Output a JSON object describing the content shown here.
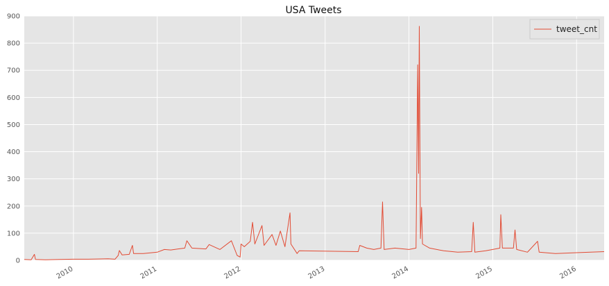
{
  "chart_data": {
    "type": "line",
    "title": "USA Tweets",
    "xlabel": "",
    "ylabel": "",
    "x_axis": "date",
    "xlim": [
      "2009-06-01",
      "2016-04-30"
    ],
    "ylim": [
      0,
      900
    ],
    "y_ticks": [
      0,
      100,
      200,
      300,
      400,
      500,
      600,
      700,
      800,
      900
    ],
    "x_ticks": [
      "2010",
      "2011",
      "2012",
      "2013",
      "2014",
      "2015",
      "2016"
    ],
    "x_tick_dates": [
      "2010-01-01",
      "2011-01-01",
      "2012-01-01",
      "2013-01-01",
      "2014-01-01",
      "2015-01-01",
      "2016-01-01"
    ],
    "grid": true,
    "legend_position": "top-right",
    "series": [
      {
        "name": "tweet_cnt",
        "color": "#e24a33",
        "points": [
          [
            "2009-06-01",
            3
          ],
          [
            "2009-07-01",
            2
          ],
          [
            "2009-07-15",
            22
          ],
          [
            "2009-07-20",
            3
          ],
          [
            "2009-09-01",
            2
          ],
          [
            "2009-11-01",
            3
          ],
          [
            "2010-01-01",
            4
          ],
          [
            "2010-03-01",
            4
          ],
          [
            "2010-05-01",
            5
          ],
          [
            "2010-06-01",
            6
          ],
          [
            "2010-07-01",
            4
          ],
          [
            "2010-07-15",
            18
          ],
          [
            "2010-07-20",
            36
          ],
          [
            "2010-08-01",
            20
          ],
          [
            "2010-09-01",
            22
          ],
          [
            "2010-09-15",
            55
          ],
          [
            "2010-09-20",
            25
          ],
          [
            "2010-11-01",
            25
          ],
          [
            "2011-01-01",
            30
          ],
          [
            "2011-02-01",
            40
          ],
          [
            "2011-03-01",
            38
          ],
          [
            "2011-05-01",
            45
          ],
          [
            "2011-05-10",
            72
          ],
          [
            "2011-06-01",
            45
          ],
          [
            "2011-08-01",
            42
          ],
          [
            "2011-08-15",
            58
          ],
          [
            "2011-10-01",
            40
          ],
          [
            "2011-11-20",
            72
          ],
          [
            "2011-12-15",
            18
          ],
          [
            "2011-12-28",
            12
          ],
          [
            "2012-01-01",
            60
          ],
          [
            "2012-01-15",
            50
          ],
          [
            "2012-02-10",
            70
          ],
          [
            "2012-02-20",
            140
          ],
          [
            "2012-03-01",
            60
          ],
          [
            "2012-04-01",
            128
          ],
          [
            "2012-04-10",
            55
          ],
          [
            "2012-05-15",
            95
          ],
          [
            "2012-06-01",
            55
          ],
          [
            "2012-06-20",
            108
          ],
          [
            "2012-07-10",
            50
          ],
          [
            "2012-08-01",
            175
          ],
          [
            "2012-08-05",
            60
          ],
          [
            "2012-09-01",
            25
          ],
          [
            "2012-09-10",
            35
          ],
          [
            "2013-05-25",
            32
          ],
          [
            "2013-06-01",
            55
          ],
          [
            "2013-07-01",
            45
          ],
          [
            "2013-08-01",
            40
          ],
          [
            "2013-09-01",
            45
          ],
          [
            "2013-09-08",
            215
          ],
          [
            "2013-09-15",
            40
          ],
          [
            "2013-11-01",
            45
          ],
          [
            "2014-01-01",
            40
          ],
          [
            "2014-02-01",
            45
          ],
          [
            "2014-02-08",
            720
          ],
          [
            "2014-02-12",
            320
          ],
          [
            "2014-02-15",
            862
          ],
          [
            "2014-02-20",
            80
          ],
          [
            "2014-02-25",
            195
          ],
          [
            "2014-03-01",
            60
          ],
          [
            "2014-04-01",
            45
          ],
          [
            "2014-06-01",
            35
          ],
          [
            "2014-08-01",
            30
          ],
          [
            "2014-10-01",
            32
          ],
          [
            "2014-10-08",
            140
          ],
          [
            "2014-10-15",
            30
          ],
          [
            "2014-12-01",
            35
          ],
          [
            "2015-01-01",
            40
          ],
          [
            "2015-02-01",
            45
          ],
          [
            "2015-02-05",
            168
          ],
          [
            "2015-02-12",
            45
          ],
          [
            "2015-04-01",
            45
          ],
          [
            "2015-04-08",
            112
          ],
          [
            "2015-04-15",
            40
          ],
          [
            "2015-06-01",
            30
          ],
          [
            "2015-07-15",
            70
          ],
          [
            "2015-07-22",
            30
          ],
          [
            "2015-10-01",
            25
          ],
          [
            "2016-01-01",
            28
          ],
          [
            "2016-03-01",
            30
          ],
          [
            "2016-04-30",
            32
          ]
        ]
      }
    ]
  }
}
